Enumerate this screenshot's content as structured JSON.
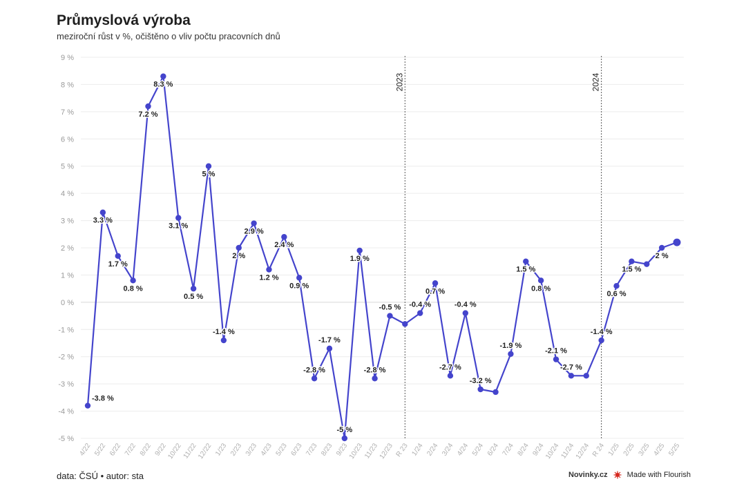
{
  "header": {
    "title": "Průmyslová výroba",
    "subtitle": "meziroční růst v %, očištěno o vliv počtu pracovních dnů"
  },
  "footer": {
    "source": "data: ČSÚ • autor: sta",
    "brand": "Novinky.cz",
    "made_with": "Made with Flourish"
  },
  "colors": {
    "series": "#4444cc",
    "grid": "#ececec",
    "axis_text": "#999999",
    "marker_line": "#555555"
  },
  "chart_data": {
    "type": "line",
    "ylim": [
      -5,
      9
    ],
    "yticks": [
      -5,
      -4,
      -3,
      -2,
      -1,
      0,
      1,
      2,
      3,
      4,
      5,
      6,
      7,
      8,
      9
    ],
    "y_tick_suffix": " %",
    "categories": [
      "4/22",
      "5/22",
      "6/22",
      "7/22",
      "8/22",
      "9/22",
      "10/22",
      "11/22",
      "12/22",
      "1/23",
      "2/23",
      "3/23",
      "4/23",
      "5/23",
      "6/23",
      "7/23",
      "8/23",
      "9/23",
      "10/23",
      "11/23",
      "12/23",
      "R 23",
      "1/24",
      "2/24",
      "3/24",
      "4/24",
      "5/24",
      "6/24",
      "7/24",
      "8/24",
      "9/24",
      "10/24",
      "11/24",
      "12/24",
      "R 24",
      "1/25",
      "2/25",
      "3/25",
      "4/25",
      "5/25"
    ],
    "values": [
      -3.8,
      3.3,
      1.7,
      0.8,
      7.2,
      8.3,
      3.1,
      0.5,
      5.0,
      -1.4,
      2.0,
      2.9,
      1.2,
      2.4,
      0.9,
      -2.8,
      -1.7,
      -5.0,
      1.9,
      -2.8,
      -0.5,
      -0.8,
      -0.4,
      0.7,
      -2.7,
      -0.4,
      -3.2,
      -3.3,
      -1.9,
      1.5,
      0.8,
      -2.1,
      -2.7,
      -2.7,
      -1.4,
      0.6,
      1.5,
      1.4,
      2.0,
      2.2
    ],
    "data_labels": [
      {
        "i": 0,
        "text": "-3.8 %",
        "pos": "right"
      },
      {
        "i": 1,
        "text": "3.3 %",
        "pos": "below"
      },
      {
        "i": 2,
        "text": "1.7 %",
        "pos": "below"
      },
      {
        "i": 3,
        "text": "0.8 %",
        "pos": "below"
      },
      {
        "i": 4,
        "text": "7.2 %",
        "pos": "below"
      },
      {
        "i": 5,
        "text": "8.3 %",
        "pos": "below"
      },
      {
        "i": 6,
        "text": "3.1 %",
        "pos": "below"
      },
      {
        "i": 7,
        "text": "0.5 %",
        "pos": "below"
      },
      {
        "i": 8,
        "text": "5 %",
        "pos": "below"
      },
      {
        "i": 9,
        "text": "-1.4 %",
        "pos": "above"
      },
      {
        "i": 10,
        "text": "2 %",
        "pos": "below"
      },
      {
        "i": 11,
        "text": "2.9 %",
        "pos": "below"
      },
      {
        "i": 12,
        "text": "1.2 %",
        "pos": "below"
      },
      {
        "i": 13,
        "text": "2.4 %",
        "pos": "below"
      },
      {
        "i": 14,
        "text": "0.9 %",
        "pos": "below"
      },
      {
        "i": 15,
        "text": "-2.8 %",
        "pos": "above"
      },
      {
        "i": 16,
        "text": "-1.7 %",
        "pos": "above"
      },
      {
        "i": 17,
        "text": "-5 %",
        "pos": "above"
      },
      {
        "i": 18,
        "text": "1.9 %",
        "pos": "below"
      },
      {
        "i": 19,
        "text": "-2.8 %",
        "pos": "above"
      },
      {
        "i": 20,
        "text": "-0.5 %",
        "pos": "above"
      },
      {
        "i": 22,
        "text": "-0.4 %",
        "pos": "above"
      },
      {
        "i": 23,
        "text": "0.7 %",
        "pos": "below"
      },
      {
        "i": 24,
        "text": "-2.7 %",
        "pos": "above"
      },
      {
        "i": 25,
        "text": "-0.4 %",
        "pos": "above"
      },
      {
        "i": 26,
        "text": "-3.2 %",
        "pos": "above"
      },
      {
        "i": 28,
        "text": "-1.9 %",
        "pos": "above"
      },
      {
        "i": 29,
        "text": "1.5 %",
        "pos": "below"
      },
      {
        "i": 30,
        "text": "0.8 %",
        "pos": "below"
      },
      {
        "i": 31,
        "text": "-2.1 %",
        "pos": "above"
      },
      {
        "i": 32,
        "text": "-2.7 %",
        "pos": "above"
      },
      {
        "i": 34,
        "text": "-1.4 %",
        "pos": "above"
      },
      {
        "i": 35,
        "text": "0.6 %",
        "pos": "below"
      },
      {
        "i": 36,
        "text": "1.5 %",
        "pos": "below"
      },
      {
        "i": 38,
        "text": "2 %",
        "pos": "below"
      }
    ],
    "annotations": [
      {
        "at": "R 23",
        "text": "2023"
      },
      {
        "at": "R 24",
        "text": "2024"
      }
    ],
    "grid": true
  }
}
